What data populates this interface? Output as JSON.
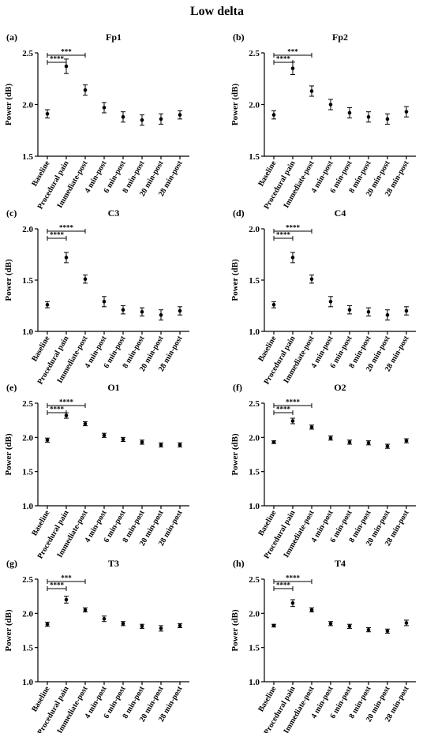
{
  "figure_title": "Low delta",
  "categories": [
    "Baseline",
    "Procedural pain",
    "Immediate-post",
    "4 min-post",
    "6 min-post",
    "8 min-post",
    "20 min-post",
    "28 min-post"
  ],
  "chart_data": [
    {
      "type": "scatter",
      "panel_label": "(a)",
      "title": "Fp1",
      "ylabel": "Power (dB)",
      "ylim": [
        1.5,
        2.5
      ],
      "yticks": [
        "1.5",
        "2.0",
        "2.5"
      ],
      "ytick_values": [
        1.5,
        2.0,
        2.5
      ],
      "values": [
        1.91,
        2.37,
        2.14,
        1.97,
        1.88,
        1.85,
        1.86,
        1.9
      ],
      "errors": [
        0.04,
        0.07,
        0.05,
        0.05,
        0.05,
        0.05,
        0.05,
        0.04
      ],
      "significance": [
        {
          "from": 0,
          "to": 2,
          "label": "***"
        },
        {
          "from": 0,
          "to": 1,
          "label": "****"
        }
      ]
    },
    {
      "type": "scatter",
      "panel_label": "(b)",
      "title": "Fp2",
      "ylabel": "Power (dB)",
      "ylim": [
        1.5,
        2.5
      ],
      "yticks": [
        "1.5",
        "2.0",
        "2.5"
      ],
      "ytick_values": [
        1.5,
        2.0,
        2.5
      ],
      "values": [
        1.9,
        2.35,
        2.13,
        2.0,
        1.92,
        1.88,
        1.86,
        1.93
      ],
      "errors": [
        0.04,
        0.06,
        0.05,
        0.05,
        0.05,
        0.05,
        0.05,
        0.05
      ],
      "significance": [
        {
          "from": 0,
          "to": 2,
          "label": "***"
        },
        {
          "from": 0,
          "to": 1,
          "label": "****"
        }
      ]
    },
    {
      "type": "scatter",
      "panel_label": "(c)",
      "title": "C3",
      "ylabel": "Power (dB)",
      "ylim": [
        1.0,
        2.0
      ],
      "yticks": [
        "1.0",
        "1.5",
        "2.0"
      ],
      "ytick_values": [
        1.0,
        1.5,
        2.0
      ],
      "values": [
        1.26,
        1.72,
        1.51,
        1.29,
        1.21,
        1.19,
        1.16,
        1.2
      ],
      "errors": [
        0.03,
        0.05,
        0.04,
        0.05,
        0.04,
        0.04,
        0.05,
        0.04
      ],
      "significance": [
        {
          "from": 0,
          "to": 2,
          "label": "****"
        },
        {
          "from": 0,
          "to": 1,
          "label": "****"
        }
      ]
    },
    {
      "type": "scatter",
      "panel_label": "(d)",
      "title": "C4",
      "ylabel": "Power (dB)",
      "ylim": [
        1.0,
        2.0
      ],
      "yticks": [
        "1.0",
        "1.5",
        "2.0"
      ],
      "ytick_values": [
        1.0,
        1.5,
        2.0
      ],
      "values": [
        1.26,
        1.72,
        1.51,
        1.29,
        1.21,
        1.19,
        1.16,
        1.2
      ],
      "errors": [
        0.03,
        0.05,
        0.04,
        0.05,
        0.04,
        0.04,
        0.05,
        0.04
      ],
      "significance": [
        {
          "from": 0,
          "to": 2,
          "label": "****"
        },
        {
          "from": 0,
          "to": 1,
          "label": "****"
        }
      ]
    },
    {
      "type": "scatter",
      "panel_label": "(e)",
      "title": "O1",
      "ylabel": "Power (dB)",
      "ylim": [
        1.0,
        2.5
      ],
      "yticks": [
        "1.0",
        "1.5",
        "2.0",
        "2.5"
      ],
      "ytick_values": [
        1.0,
        1.5,
        2.0,
        2.5
      ],
      "values": [
        1.96,
        2.32,
        2.2,
        2.03,
        1.97,
        1.93,
        1.89,
        1.89
      ],
      "errors": [
        0.03,
        0.04,
        0.03,
        0.03,
        0.03,
        0.03,
        0.03,
        0.03
      ],
      "significance": [
        {
          "from": 0,
          "to": 2,
          "label": "****"
        },
        {
          "from": 0,
          "to": 1,
          "label": "****"
        }
      ]
    },
    {
      "type": "scatter",
      "panel_label": "(f)",
      "title": "O2",
      "ylabel": "Power (dB)",
      "ylim": [
        1.0,
        2.5
      ],
      "yticks": [
        "1.0",
        "1.5",
        "2.0",
        "2.5"
      ],
      "ytick_values": [
        1.0,
        1.5,
        2.0,
        2.5
      ],
      "values": [
        1.93,
        2.24,
        2.15,
        1.99,
        1.93,
        1.92,
        1.87,
        1.95
      ],
      "errors": [
        0.02,
        0.04,
        0.03,
        0.03,
        0.03,
        0.03,
        0.03,
        0.03
      ],
      "significance": [
        {
          "from": 0,
          "to": 2,
          "label": "****"
        },
        {
          "from": 0,
          "to": 1,
          "label": "****"
        }
      ]
    },
    {
      "type": "scatter",
      "panel_label": "(g)",
      "title": "T3",
      "ylabel": "Power (dB)",
      "ylim": [
        1.0,
        2.5
      ],
      "yticks": [
        "1.0",
        "1.5",
        "2.0",
        "2.5"
      ],
      "ytick_values": [
        1.0,
        1.5,
        2.0,
        2.5
      ],
      "values": [
        1.84,
        2.2,
        2.05,
        1.92,
        1.85,
        1.81,
        1.78,
        1.82
      ],
      "errors": [
        0.03,
        0.05,
        0.03,
        0.04,
        0.03,
        0.03,
        0.04,
        0.03
      ],
      "significance": [
        {
          "from": 0,
          "to": 2,
          "label": "***"
        },
        {
          "from": 0,
          "to": 1,
          "label": "****"
        }
      ]
    },
    {
      "type": "scatter",
      "panel_label": "(h)",
      "title": "T4",
      "ylabel": "Power (dB)",
      "ylim": [
        1.0,
        2.5
      ],
      "yticks": [
        "1.0",
        "1.5",
        "2.0",
        "2.5"
      ],
      "ytick_values": [
        1.0,
        1.5,
        2.0,
        2.5
      ],
      "values": [
        1.82,
        2.15,
        2.05,
        1.85,
        1.81,
        1.76,
        1.74,
        1.86
      ],
      "errors": [
        0.02,
        0.05,
        0.03,
        0.03,
        0.03,
        0.03,
        0.03,
        0.04
      ],
      "significance": [
        {
          "from": 0,
          "to": 2,
          "label": "****"
        },
        {
          "from": 0,
          "to": 1,
          "label": "****"
        }
      ]
    }
  ]
}
